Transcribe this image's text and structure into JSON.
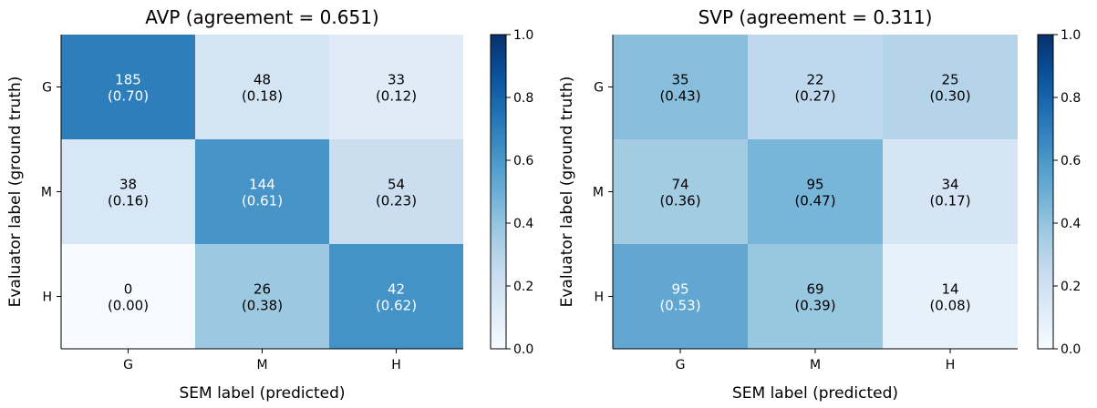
{
  "chart_data": [
    {
      "type": "heatmap",
      "title": "AVP  (agreement = 0.651)",
      "xlabel": "SEM label (predicted)",
      "ylabel": "Evaluator label (ground truth)",
      "x_categories": [
        "G",
        "M",
        "H"
      ],
      "y_categories": [
        "G",
        "M",
        "H"
      ],
      "counts": [
        [
          185,
          48,
          33
        ],
        [
          38,
          144,
          54
        ],
        [
          0,
          26,
          42
        ]
      ],
      "fractions": [
        [
          0.7,
          0.18,
          0.12
        ],
        [
          0.16,
          0.61,
          0.23
        ],
        [
          0.0,
          0.38,
          0.62
        ]
      ],
      "fraction_labels": [
        [
          "(0.70)",
          "(0.18)",
          "(0.12)"
        ],
        [
          "(0.16)",
          "(0.61)",
          "(0.23)"
        ],
        [
          "(0.00)",
          "(0.38)",
          "(0.62)"
        ]
      ],
      "colorbar": {
        "range": [
          0.0,
          1.0
        ],
        "ticks": [
          "0.0",
          "0.2",
          "0.4",
          "0.6",
          "0.8",
          "1.0"
        ],
        "colormap": "Blues"
      }
    },
    {
      "type": "heatmap",
      "title": "SVP  (agreement = 0.311)",
      "xlabel": "SEM label (predicted)",
      "ylabel": "Evaluator label (ground truth)",
      "x_categories": [
        "G",
        "M",
        "H"
      ],
      "y_categories": [
        "G",
        "M",
        "H"
      ],
      "counts": [
        [
          35,
          22,
          25
        ],
        [
          74,
          95,
          34
        ],
        [
          95,
          69,
          14
        ]
      ],
      "fractions": [
        [
          0.43,
          0.27,
          0.3
        ],
        [
          0.36,
          0.47,
          0.17
        ],
        [
          0.53,
          0.39,
          0.08
        ]
      ],
      "fraction_labels": [
        [
          "(0.43)",
          "(0.27)",
          "(0.30)"
        ],
        [
          "(0.36)",
          "(0.47)",
          "(0.17)"
        ],
        [
          "(0.53)",
          "(0.39)",
          "(0.08)"
        ]
      ],
      "colorbar": {
        "range": [
          0.0,
          1.0
        ],
        "ticks": [
          "0.0",
          "0.2",
          "0.4",
          "0.6",
          "0.8",
          "1.0"
        ],
        "colormap": "Blues"
      }
    }
  ],
  "colors": {
    "text_dark": "#000000",
    "text_light": "#ffffff",
    "axis_line": "#000000"
  }
}
